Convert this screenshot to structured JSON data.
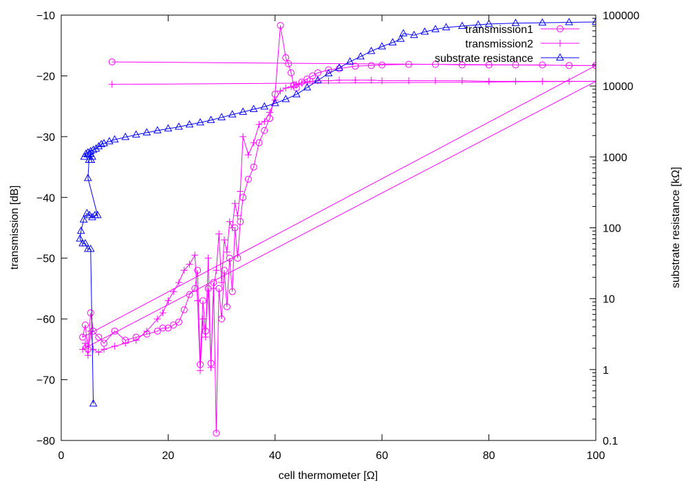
{
  "chart_data": {
    "type": "line",
    "xlabel": "cell thermometer [Ω]",
    "ylabel": "transmission [dB]",
    "y2label": "substrate resistance [kΩ]",
    "xlim": [
      0,
      100
    ],
    "ylim": [
      -80,
      -10
    ],
    "y2lim": [
      0.1,
      100000
    ],
    "y2scale": "log",
    "grid": false,
    "legend_position": "top-right",
    "x_ticks": [
      "0",
      "20",
      "40",
      "60",
      "80",
      "100"
    ],
    "y_ticks": [
      "−10",
      "−20",
      "−30",
      "−40",
      "−50",
      "−60",
      "−70",
      "−80"
    ],
    "y2_ticks": [
      "100000",
      "10000",
      "1000",
      "100",
      "10",
      "1",
      "0.1"
    ],
    "series": [
      {
        "name": "transmission1",
        "axis": "y",
        "color": "#ff00ff",
        "marker": "circle",
        "x": [
          9.5,
          100,
          4.0,
          4.5,
          5.0,
          5.5,
          6.0,
          7.0,
          8.0,
          10.0,
          12.0,
          14.0,
          16.0,
          18.0,
          19.0,
          20.0,
          21.0,
          22.0,
          23.0,
          24.0,
          25.0,
          25.5,
          26.0,
          26.5,
          27.0,
          27.5,
          28.0,
          28.5,
          29.0,
          29.5,
          30.0,
          30.5,
          31.0,
          31.5,
          32.0,
          32.5,
          33.0,
          33.5,
          34.0,
          35.0,
          36.0,
          37.0,
          38.0,
          39.0,
          40.0,
          41.0,
          42.0,
          42.5,
          43.0,
          43.5,
          44.0,
          45.0,
          46.0,
          47.0,
          48.0,
          50.0,
          52.0,
          55.0,
          58.0,
          60.0,
          65.0,
          70.0,
          75.0,
          80.0,
          85.0,
          90.0,
          95.0,
          100.0
        ],
        "y": [
          -17.7,
          -18.3,
          -63.0,
          -61.0,
          -65.0,
          -59.0,
          -62.0,
          -63.0,
          -64.0,
          -62.0,
          -63.5,
          -63.0,
          -62.5,
          -62.0,
          -61.5,
          -61.5,
          -61.0,
          -60.5,
          -58.5,
          -56.0,
          -55.0,
          -52.0,
          -67.5,
          -57.0,
          -62.0,
          -55.0,
          -67.3,
          -54.0,
          -78.8,
          -55.0,
          -60.0,
          -52.0,
          -58.0,
          -50.0,
          -55.5,
          -45.0,
          -50.0,
          -44.0,
          -40.0,
          -37.0,
          -35.0,
          -31.0,
          -29.0,
          -27.0,
          -23.0,
          -11.7,
          -17.0,
          -18.0,
          -19.5,
          -21.5,
          -22.0,
          -21.0,
          -20.5,
          -20.0,
          -19.5,
          -19.0,
          -18.8,
          -18.4,
          -18.3,
          -18.2,
          -18.1,
          -18.1,
          -18.2,
          -18.2,
          -18.2,
          -18.2,
          -18.3,
          -18.3
        ]
      },
      {
        "name": "transmission2",
        "axis": "y",
        "color": "#ff00ff",
        "marker": "plus",
        "x": [
          9.5,
          100,
          4.0,
          4.5,
          5.0,
          5.5,
          6.0,
          7.0,
          8.0,
          10.0,
          12.0,
          14.0,
          16.0,
          18.0,
          19.0,
          20.0,
          21.0,
          22.0,
          23.0,
          24.0,
          25.0,
          25.5,
          26.0,
          26.5,
          27.0,
          27.5,
          28.0,
          28.5,
          29.0,
          29.5,
          30.0,
          30.5,
          31.0,
          31.5,
          32.0,
          32.5,
          33.0,
          33.5,
          34.0,
          35.0,
          36.0,
          37.0,
          38.0,
          39.0,
          40.0,
          41.0,
          42.0,
          43.0,
          44.0,
          45.0,
          46.0,
          47.0,
          48.0,
          50.0,
          52.0,
          55.0,
          58.0,
          60.0,
          65.0,
          70.0,
          75.0,
          80.0,
          85.0,
          90.0,
          95.0,
          100.0
        ],
        "y": [
          -21.4,
          -20.9,
          -65.0,
          -64.0,
          -66.0,
          -62.0,
          -65.0,
          -65.5,
          -65.0,
          -64.5,
          -64.0,
          -63.5,
          -62.0,
          -60.0,
          -59.0,
          -57.0,
          -55.5,
          -54.0,
          -52.0,
          -51.0,
          -49.5,
          -57.0,
          -68.5,
          -60.0,
          -63.0,
          -50.0,
          -68.0,
          -55.0,
          -52.0,
          -46.0,
          -54.0,
          -47.0,
          -49.0,
          -44.0,
          -45.0,
          -41.0,
          -43.0,
          -39.0,
          -30.0,
          -33.0,
          -31.0,
          -28.0,
          -27.5,
          -26.0,
          -24.0,
          -22.5,
          -22.0,
          -21.8,
          -21.4,
          -21.2,
          -21.0,
          -20.9,
          -20.8,
          -20.8,
          -20.7,
          -20.7,
          -20.7,
          -20.8,
          -20.8,
          -20.8,
          -20.8,
          -20.9,
          -20.9,
          -20.9,
          -20.9,
          -20.9
        ]
      },
      {
        "name": "substrate resistance",
        "axis": "y2",
        "color": "#0000ff",
        "marker": "triangle",
        "x": [
          6.0,
          5.5,
          5.0,
          4.5,
          4.0,
          3.5,
          3.7,
          4.2,
          4.8,
          5.3,
          5.8,
          6.3,
          6.8,
          5.0,
          5.2,
          5.4,
          5.6,
          5.8,
          4.3,
          4.6,
          5.0,
          5.5,
          6.0,
          6.5,
          7.0,
          7.5,
          8.0,
          9.0,
          10.0,
          12.0,
          14.0,
          16.0,
          18.0,
          20.0,
          22.0,
          24.0,
          26.0,
          28.0,
          30.0,
          32.0,
          34.0,
          36.0,
          38.0,
          40.0,
          42.0,
          44.0,
          46.0,
          48.0,
          50.0,
          52.0,
          54.0,
          56.0,
          58.0,
          60.0,
          62.0,
          63.5,
          64.0,
          66.0,
          68.0,
          70.0,
          72.0,
          75.0,
          78.0,
          80.0,
          85.0,
          90.0,
          95.0,
          100.0
        ],
        "y": [
          0.33,
          50,
          50,
          60,
          60,
          70,
          90,
          130,
          160,
          150,
          140,
          150,
          150,
          500,
          900,
          1100,
          900,
          1000,
          1000,
          1100,
          1150,
          1200,
          1250,
          1300,
          1400,
          1500,
          1550,
          1650,
          1750,
          1900,
          2050,
          2200,
          2350,
          2500,
          2650,
          2850,
          3050,
          3300,
          3600,
          3950,
          4300,
          4700,
          5100,
          5700,
          6500,
          7600,
          9500,
          12000,
          15000,
          18000,
          22000,
          26000,
          31000,
          36000,
          41000,
          46000,
          55000,
          52000,
          58000,
          63000,
          67000,
          70000,
          73000,
          75000,
          77000,
          78000,
          79000,
          80000
        ]
      }
    ]
  }
}
